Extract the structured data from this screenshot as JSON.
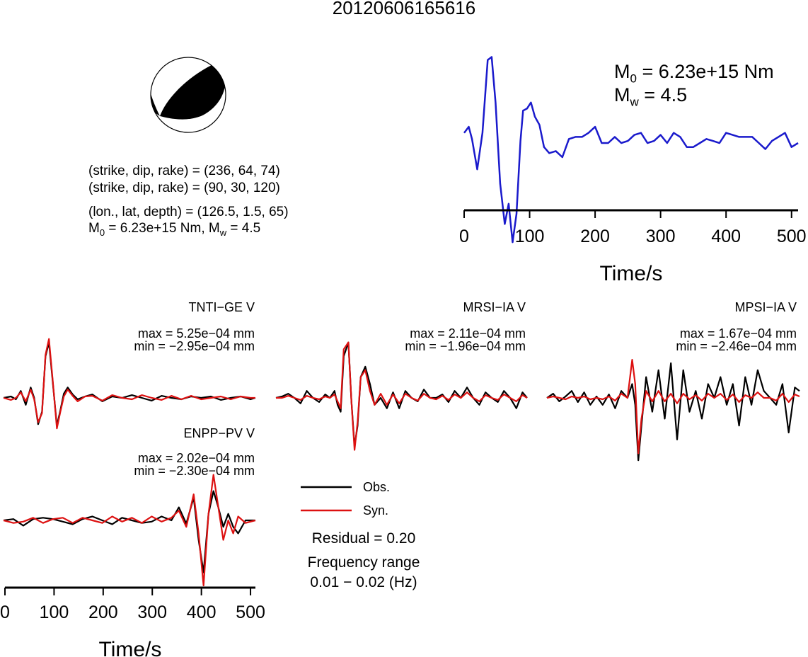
{
  "title": "20120606165616",
  "info": {
    "line1": "(strike, dip, rake) = (236, 64, 74)",
    "line2": "(strike, dip, rake) = (90, 30, 120)",
    "line3": "(lon., lat, depth) = (126.5, 1.5, 65)",
    "m0_text": "M",
    "m0_sub": "0",
    "m0_val": " = 6.23e+15 Nm, M",
    "mw_sub": "w",
    "mw_val": " = 4.5"
  },
  "stf_header": {
    "m0_prefix": "M",
    "m0_sub": "0",
    "m0_value": " = 6.23e+15 Nm",
    "mw_prefix": "M",
    "mw_sub": "w",
    "mw_value": " = 4.5"
  },
  "legend": {
    "obs": "Obs.",
    "syn": "Syn.",
    "residual": "Residual = 0.20",
    "freq_title": "Frequency range",
    "freq_value": "0.01 − 0.02 (Hz)"
  },
  "colors": {
    "obs": "#000000",
    "syn": "#dd1111",
    "stf": "#1a1acc"
  },
  "chart_data": [
    {
      "type": "line",
      "title": "",
      "xlabel": "Time/s",
      "xlim": [
        0,
        510
      ],
      "xticks": [
        0,
        100,
        200,
        300,
        400,
        500
      ],
      "series": [
        {
          "name": "",
          "x": [
            0,
            7,
            12,
            20,
            28,
            36,
            42,
            48,
            55,
            62,
            68,
            74,
            80,
            86,
            90,
            96,
            102,
            108,
            115,
            122,
            130,
            140,
            150,
            160,
            170,
            180,
            190,
            200,
            210,
            220,
            230,
            240,
            250,
            260,
            270,
            280,
            290,
            300,
            310,
            320,
            330,
            340,
            350,
            360,
            370,
            380,
            390,
            400,
            410,
            420,
            430,
            440,
            450,
            460,
            470,
            480,
            490,
            500,
            510
          ],
          "y": [
            0.1,
            0.16,
            0.04,
            -0.26,
            0.1,
            0.82,
            0.85,
            0.4,
            -0.4,
            -0.8,
            -0.6,
            -0.98,
            -0.7,
            0.02,
            0.32,
            0.34,
            0.4,
            0.26,
            0.18,
            -0.04,
            -0.1,
            -0.08,
            -0.14,
            0.04,
            0.06,
            0.06,
            0.1,
            0.16,
            0.0,
            0.0,
            0.06,
            0.0,
            0.02,
            0.08,
            0.1,
            0.0,
            0.02,
            0.08,
            0.0,
            0.1,
            0.06,
            -0.04,
            -0.04,
            0.0,
            0.04,
            0.02,
            0.0,
            0.1,
            0.08,
            0.06,
            0.06,
            0.06,
            0.0,
            -0.06,
            0.02,
            0.06,
            0.1,
            -0.04,
            0.0
          ]
        }
      ]
    },
    {
      "type": "line",
      "station": "TNTI−GE V",
      "max_label": "max = 5.25e−04 mm",
      "min_label": "min = −2.95e−04 mm",
      "x": [
        0,
        15,
        25,
        35,
        45,
        55,
        62,
        70,
        78,
        85,
        92,
        100,
        108,
        115,
        122,
        130,
        140,
        150,
        165,
        180,
        200,
        220,
        240,
        260,
        280,
        300,
        320,
        340,
        360,
        380,
        400,
        420,
        440,
        460,
        480,
        500,
        510
      ],
      "series": [
        {
          "name": "Obs.",
          "values": [
            0.0,
            0.02,
            -0.02,
            0.1,
            -0.1,
            0.15,
            0.0,
            -0.38,
            -0.2,
            0.6,
            0.8,
            0.2,
            -0.4,
            -0.18,
            0.06,
            0.15,
            0.05,
            -0.02,
            0.02,
            0.05,
            -0.05,
            0.02,
            0.0,
            0.04,
            0.0,
            -0.04,
            0.03,
            0.0,
            -0.02,
            0.02,
            0.0,
            0.02,
            -0.03,
            0.0,
            0.02,
            -0.02,
            0.0
          ]
        },
        {
          "name": "Syn.",
          "values": [
            0.0,
            -0.03,
            0.0,
            0.08,
            -0.05,
            0.12,
            -0.02,
            -0.35,
            -0.22,
            0.62,
            0.85,
            0.22,
            -0.44,
            -0.2,
            0.02,
            0.12,
            0.03,
            -0.05,
            0.02,
            0.03,
            -0.04,
            0.04,
            0.0,
            -0.02,
            0.04,
            0.0,
            -0.03,
            0.03,
            -0.02,
            0.03,
            -0.02,
            0.0,
            0.02,
            -0.02,
            0.02,
            0.0,
            0.0
          ]
        }
      ]
    },
    {
      "type": "line",
      "station": "MRSI−IA V",
      "max_label": "max = 2.11e−04 mm",
      "min_label": "min = −1.96e−04 mm",
      "x": [
        0,
        20,
        40,
        60,
        80,
        100,
        120,
        140,
        160,
        175,
        190,
        200,
        210,
        220,
        235,
        245,
        255,
        265,
        275,
        290,
        305,
        320,
        340,
        360,
        380,
        400,
        420,
        440,
        460,
        480,
        500,
        520,
        540,
        560,
        580,
        600,
        620,
        640,
        660,
        680,
        700,
        720,
        740,
        760,
        780,
        800,
        815
      ],
      "series": [
        {
          "name": "Obs.",
          "values": [
            0.0,
            0.02,
            0.06,
            0.0,
            -0.08,
            0.1,
            0.0,
            -0.06,
            0.05,
            0.0,
            0.1,
            -0.1,
            -0.2,
            0.6,
            0.8,
            -0.05,
            -0.7,
            -0.4,
            0.3,
            0.45,
            0.2,
            -0.1,
            0.0,
            -0.15,
            0.08,
            -0.15,
            0.1,
            0.0,
            -0.05,
            0.12,
            0.0,
            0.0,
            0.05,
            -0.06,
            0.1,
            0.0,
            0.15,
            0.0,
            -0.1,
            0.08,
            0.0,
            -0.06,
            0.1,
            0.0,
            -0.15,
            0.08,
            0.0
          ]
        },
        {
          "name": "Syn.",
          "values": [
            0.0,
            0.0,
            0.03,
            0.0,
            -0.03,
            0.03,
            0.0,
            -0.02,
            0.02,
            0.0,
            0.05,
            -0.05,
            -0.15,
            0.7,
            0.8,
            -0.05,
            -0.75,
            -0.35,
            0.3,
            0.4,
            0.1,
            -0.1,
            0.06,
            -0.1,
            0.05,
            -0.08,
            0.06,
            0.0,
            -0.04,
            0.06,
            0.0,
            -0.02,
            0.03,
            -0.03,
            0.05,
            0.0,
            0.08,
            0.0,
            -0.05,
            0.04,
            0.0,
            -0.03,
            0.05,
            0.0,
            -0.05,
            0.04,
            0.0
          ]
        }
      ]
    },
    {
      "type": "line",
      "station": "MPSI−IA V",
      "max_label": "max = 1.67e−04 mm",
      "min_label": "min = −2.46e−04 mm",
      "x": [
        0,
        20,
        40,
        60,
        80,
        100,
        120,
        140,
        160,
        180,
        200,
        220,
        240,
        260,
        275,
        285,
        295,
        305,
        320,
        340,
        360,
        380,
        400,
        420,
        440,
        460,
        480,
        500,
        520,
        540,
        560,
        580,
        600,
        620,
        640,
        660,
        680,
        700,
        720,
        740,
        760,
        780,
        800,
        815
      ],
      "series": [
        {
          "name": "Obs.",
          "values": [
            0.0,
            0.06,
            -0.05,
            0.02,
            0.1,
            -0.06,
            0.08,
            -0.1,
            0.02,
            -0.1,
            0.05,
            -0.15,
            0.1,
            0.0,
            0.2,
            -0.1,
            -0.9,
            -0.4,
            0.3,
            -0.2,
            0.4,
            -0.3,
            0.5,
            -0.6,
            0.4,
            -0.2,
            0.1,
            -0.3,
            0.2,
            0.0,
            0.3,
            -0.1,
            0.2,
            -0.4,
            0.3,
            -0.1,
            0.4,
            0.1,
            0.0,
            -0.1,
            0.2,
            -0.5,
            0.15,
            0.1
          ]
        },
        {
          "name": "Syn.",
          "values": [
            0.0,
            0.02,
            0.0,
            -0.02,
            0.02,
            0.0,
            0.02,
            -0.02,
            0.0,
            -0.02,
            0.02,
            -0.04,
            0.06,
            0.0,
            0.55,
            0.2,
            -0.8,
            -0.3,
            0.1,
            -0.05,
            0.1,
            -0.05,
            0.06,
            -0.08,
            0.06,
            -0.02,
            0.04,
            -0.04,
            0.06,
            0.0,
            0.06,
            -0.03,
            0.05,
            -0.06,
            0.04,
            0.0,
            0.08,
            0.0,
            0.0,
            -0.04,
            0.06,
            -0.06,
            0.05,
            0.02
          ]
        }
      ]
    },
    {
      "type": "line",
      "station": "ENPP−PV V",
      "max_label": "max = 2.02e−04 mm",
      "min_label": "min = −2.30e−04 mm",
      "xlabel": "Time/s",
      "xlim": [
        0,
        510
      ],
      "xticks": [
        0,
        100,
        200,
        300,
        400,
        500
      ],
      "x": [
        0,
        20,
        40,
        60,
        80,
        100,
        120,
        140,
        160,
        180,
        200,
        220,
        240,
        260,
        280,
        300,
        320,
        340,
        355,
        370,
        385,
        395,
        405,
        415,
        425,
        435,
        445,
        455,
        465,
        475,
        490,
        510
      ],
      "series": [
        {
          "name": "Obs.",
          "values": [
            0.0,
            0.02,
            -0.08,
            0.02,
            0.04,
            0.02,
            -0.02,
            -0.06,
            0.02,
            0.06,
            0.0,
            -0.06,
            0.04,
            0.0,
            -0.04,
            -0.02,
            0.06,
            0.0,
            0.2,
            -0.05,
            0.35,
            -0.3,
            -0.8,
            0.1,
            0.45,
            0.2,
            -0.1,
            0.1,
            -0.1,
            -0.2,
            0.0,
            0.0
          ]
        },
        {
          "name": "Syn.",
          "values": [
            0.0,
            -0.04,
            -0.02,
            0.04,
            -0.04,
            0.02,
            0.04,
            -0.04,
            0.04,
            0.0,
            -0.04,
            0.06,
            -0.02,
            0.04,
            -0.04,
            0.06,
            -0.02,
            0.04,
            0.15,
            -0.1,
            0.4,
            -0.2,
            -1.0,
            0.1,
            0.7,
            0.2,
            -0.3,
            0.0,
            -0.2,
            0.06,
            -0.04,
            0.0
          ]
        }
      ]
    }
  ]
}
